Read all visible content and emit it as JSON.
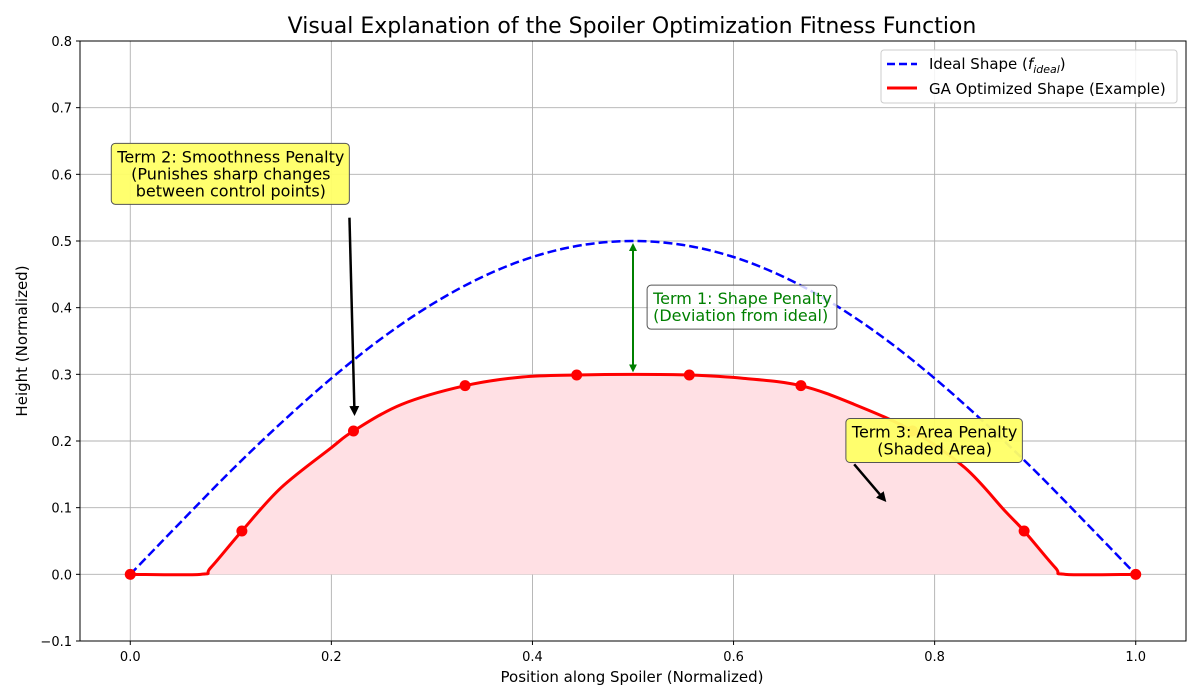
{
  "chart_data": {
    "type": "line",
    "title": "Visual Explanation of the Spoiler Optimization Fitness Function",
    "xlabel": "Position along Spoiler (Normalized)",
    "ylabel": "Height (Normalized)",
    "xlim": [
      -0.05,
      1.05
    ],
    "ylim": [
      -0.1,
      0.8
    ],
    "xticks": [
      "0.0",
      "0.2",
      "0.4",
      "0.6",
      "0.8",
      "1.0"
    ],
    "yticks": [
      "−0.1",
      "0.0",
      "0.1",
      "0.2",
      "0.3",
      "0.4",
      "0.5",
      "0.6",
      "0.7",
      "0.8"
    ],
    "grid": true,
    "legend_position": "top-right",
    "series": [
      {
        "name": "Ideal Shape (f_ideal)",
        "legend_prefix": "Ideal Shape (",
        "legend_var": "f",
        "legend_sub": "ideal",
        "legend_suffix": ")",
        "style": "dashed",
        "color": "#0000ff",
        "x": [
          0.0,
          0.05,
          0.1,
          0.15,
          0.2,
          0.25,
          0.3,
          0.35,
          0.4,
          0.45,
          0.5,
          0.55,
          0.6,
          0.65,
          0.7,
          0.75,
          0.8,
          0.85,
          0.9,
          0.95,
          1.0
        ],
        "y": [
          0.0,
          0.078,
          0.155,
          0.227,
          0.294,
          0.354,
          0.405,
          0.446,
          0.476,
          0.494,
          0.5,
          0.494,
          0.476,
          0.446,
          0.405,
          0.354,
          0.294,
          0.227,
          0.155,
          0.078,
          0.0
        ]
      },
      {
        "name": "GA Optimized Shape (Example)",
        "style": "solid",
        "color": "#ff0000",
        "x": [
          0.0,
          0.07,
          0.08,
          0.111,
          0.15,
          0.2,
          0.222,
          0.27,
          0.333,
          0.39,
          0.444,
          0.5,
          0.556,
          0.61,
          0.667,
          0.72,
          0.778,
          0.83,
          0.87,
          0.889,
          0.92,
          0.93,
          1.0
        ],
        "y": [
          0.0,
          0.0,
          0.01,
          0.065,
          0.13,
          0.19,
          0.215,
          0.255,
          0.283,
          0.296,
          0.299,
          0.3,
          0.299,
          0.294,
          0.283,
          0.255,
          0.215,
          0.16,
          0.095,
          0.065,
          0.01,
          0.0,
          0.0
        ],
        "markers_x": [
          0.0,
          0.111,
          0.222,
          0.333,
          0.444,
          0.556,
          0.667,
          0.778,
          0.889,
          1.0
        ],
        "markers_y": [
          0.0,
          0.065,
          0.215,
          0.283,
          0.299,
          0.299,
          0.283,
          0.215,
          0.065,
          0.0
        ],
        "fill_color": "#ffe0e4"
      }
    ],
    "annotations": [
      {
        "id": "term1",
        "lines": [
          "Term 1: Shape Penalty",
          "(Deviation from ideal)"
        ],
        "color": "#008000",
        "box_fill": "#ffffff",
        "text_x": 0.52,
        "text_y": 0.4,
        "arrow": {
          "x": 0.5,
          "y_from": 0.3,
          "y_to": 0.5,
          "double": true,
          "color": "#008000"
        }
      },
      {
        "id": "term2",
        "lines": [
          "Term 2: Smoothness Penalty",
          "(Punishes sharp changes",
          "between control points)"
        ],
        "color": "#000000",
        "box_fill": "#ffff66",
        "text_x": 0.1,
        "text_y": 0.6,
        "arrow": {
          "x_from": 0.218,
          "y_from": 0.535,
          "x_to": 0.223,
          "y_to": 0.23,
          "color": "#000000"
        }
      },
      {
        "id": "term3",
        "lines": [
          "Term 3: Area Penalty",
          "(Shaded Area)"
        ],
        "color": "#000000",
        "box_fill": "#ffff66",
        "text_x": 0.8,
        "text_y": 0.2,
        "arrow": {
          "x_from": 0.72,
          "y_from": 0.165,
          "x_to": 0.75,
          "y_to": 0.1,
          "color": "#000000"
        }
      }
    ]
  }
}
